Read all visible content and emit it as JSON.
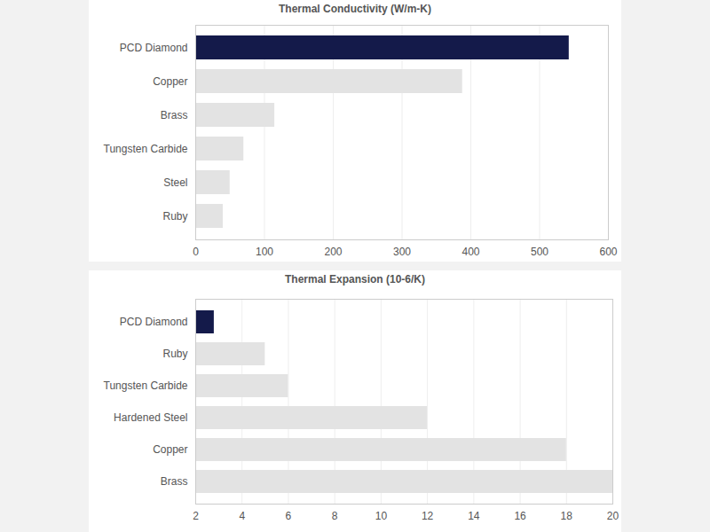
{
  "chart_data": [
    {
      "type": "bar",
      "title": "Thermal Conductivity (W/m-K)",
      "orientation": "horizontal",
      "categories": [
        "PCD Diamond",
        "Copper",
        "Brass",
        "Tungsten Carbide",
        "Steel",
        "Ruby"
      ],
      "values": [
        543,
        388,
        115,
        70,
        50,
        40
      ],
      "colors": [
        "#141a4a",
        "#e3e3e3",
        "#e3e3e3",
        "#e3e3e3",
        "#e3e3e3",
        "#e3e3e3"
      ],
      "xlim": [
        0,
        600
      ],
      "xticks": [
        0,
        100,
        200,
        300,
        400,
        500,
        600
      ],
      "grid": true
    },
    {
      "type": "bar",
      "title": "Thermal Expansion (10-6/K)",
      "orientation": "horizontal",
      "categories": [
        "PCD Diamond",
        "Ruby",
        "Tungsten Carbide",
        "Hardened Steel",
        "Copper",
        "Brass"
      ],
      "values": [
        2.8,
        5,
        6,
        12,
        18,
        20
      ],
      "colors": [
        "#141a4a",
        "#e3e3e3",
        "#e3e3e3",
        "#e3e3e3",
        "#e3e3e3",
        "#e3e3e3"
      ],
      "xlim": [
        2,
        20
      ],
      "xticks": [
        2,
        4,
        6,
        8,
        10,
        12,
        14,
        16,
        18,
        20
      ],
      "grid": true
    }
  ]
}
